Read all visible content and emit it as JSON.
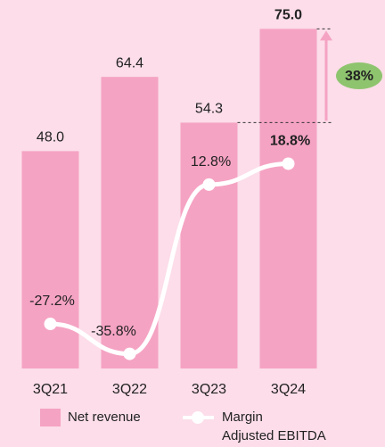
{
  "chart_data": {
    "type": "bar",
    "categories": [
      "3Q21",
      "3Q22",
      "3Q23",
      "3Q24"
    ],
    "series": [
      {
        "name": "Net revenue",
        "type": "bar",
        "color": "#f5a3c3",
        "values": [
          48.0,
          64.4,
          54.3,
          75.0
        ],
        "value_labels": [
          "48.0",
          "64.4",
          "54.3",
          "75.0"
        ]
      },
      {
        "name": "Margin\nAdjusted EBITDA",
        "type": "line",
        "axis": "y2",
        "color": "#ffffff",
        "values": [
          -27.2,
          -35.8,
          12.8,
          18.8
        ],
        "value_labels": [
          "-27.2%",
          "-35.8%",
          "12.8%",
          "18.8%"
        ]
      }
    ],
    "ylim": [
      0,
      80
    ],
    "y2lim": [
      -40,
      64
    ],
    "annotation": {
      "text": "38%",
      "color": "#8fc46f",
      "arrow_color": "#f5a3c3"
    }
  }
}
